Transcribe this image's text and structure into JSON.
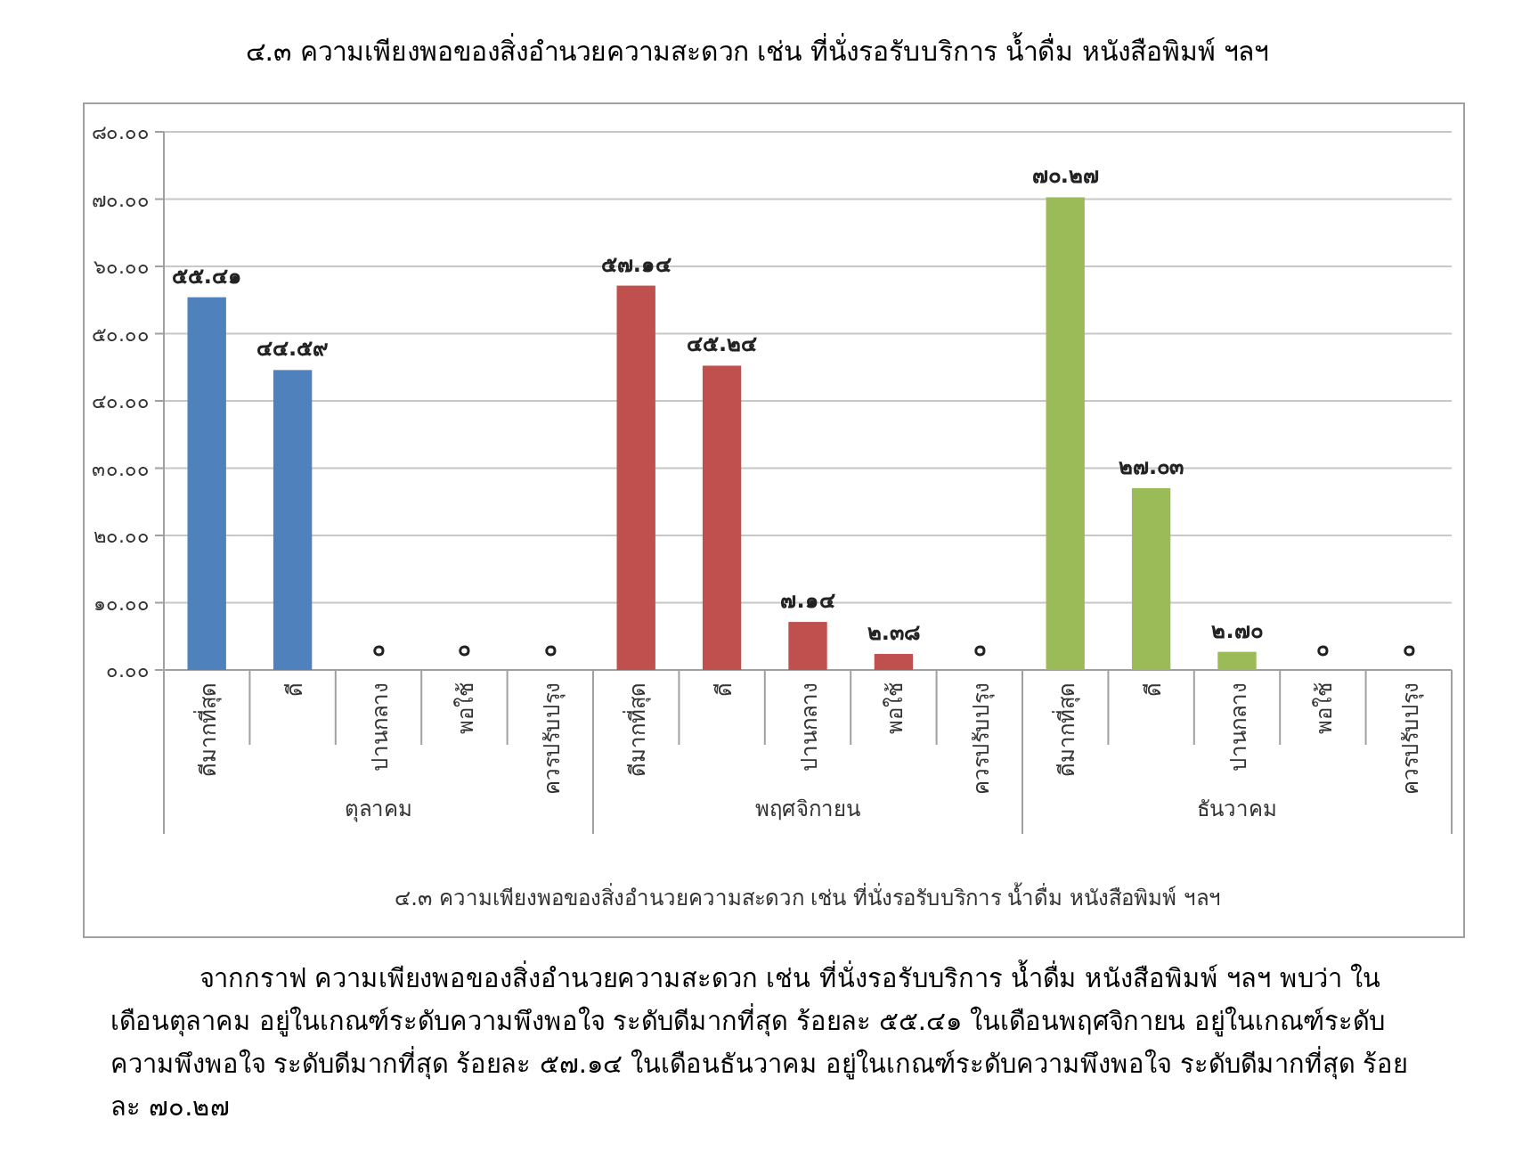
{
  "chart_data": {
    "type": "bar",
    "title": "๔.๓ ความเพียงพอของสิ่งอำนวยความสะดวก เช่น ที่นั่งรอรับบริการ น้ำดื่ม หนังสือพิมพ์ ฯลฯ",
    "xlabel": "๔.๓ ความเพียงพอของสิ่งอำนวยความสะดวก เช่น ที่นั่งรอรับบริการ น้ำดื่ม หนังสือพิมพ์ ฯลฯ",
    "categories": [
      "ดีมากที่สุด",
      "ดี",
      "ปานกลาง",
      "พอใช้",
      "ควรปรับปรุง",
      "ดีมากที่สุด",
      "ดี",
      "ปานกลาง",
      "พอใช้",
      "ควรปรับปรุง",
      "ดีมากที่สุด",
      "ดี",
      "ปานกลาง",
      "พอใช้",
      "ควรปรับปรุง"
    ],
    "series": [
      {
        "color": "#4f81bd",
        "values": [
          55.41,
          44.59,
          0,
          0,
          0,
          null,
          null,
          null,
          null,
          null,
          null,
          null,
          null,
          null,
          null
        ],
        "value_labels": [
          "๕๕.๔๑",
          "๔๔.๕๙",
          "๐",
          "๐",
          "๐",
          null,
          null,
          null,
          null,
          null,
          null,
          null,
          null,
          null,
          null
        ]
      },
      {
        "color": "#c0504d",
        "values": [
          null,
          null,
          null,
          null,
          null,
          57.14,
          45.24,
          7.14,
          2.38,
          0,
          null,
          null,
          null,
          null,
          null
        ],
        "value_labels": [
          null,
          null,
          null,
          null,
          null,
          "๕๗.๑๔",
          "๔๕.๒๔",
          "๗.๑๔",
          "๒.๓๘",
          "๐",
          null,
          null,
          null,
          null,
          null
        ]
      },
      {
        "color": "#9bbb59",
        "values": [
          null,
          null,
          null,
          null,
          null,
          null,
          null,
          null,
          null,
          null,
          70.27,
          27.03,
          2.7,
          0,
          0
        ],
        "value_labels": [
          null,
          null,
          null,
          null,
          null,
          null,
          null,
          null,
          null,
          null,
          "๗๐.๒๗",
          "๒๗.๐๓",
          "๒.๗๐",
          "๐",
          "๐"
        ]
      }
    ],
    "ylim": [
      0,
      80
    ],
    "yticks": [
      {
        "value": 0,
        "label": "๐.๐๐"
      },
      {
        "value": 10,
        "label": "๑๐.๐๐"
      },
      {
        "value": 20,
        "label": "๒๐.๐๐"
      },
      {
        "value": 30,
        "label": "๓๐.๐๐"
      },
      {
        "value": 40,
        "label": "๔๐.๐๐"
      },
      {
        "value": 50,
        "label": "๕๐.๐๐"
      },
      {
        "value": 60,
        "label": "๖๐.๐๐"
      },
      {
        "value": 70,
        "label": "๗๐.๐๐"
      },
      {
        "value": 80,
        "label": "๘๐.๐๐"
      }
    ],
    "grid": "y",
    "annotations": [
      "ตุลาคม",
      "พฤศจิกายน",
      "ธันวาคม",
      "จากกราฟ ความเพียงพอของสิ่งอำนวยความสะดวก เช่น ที่นั่งรอรับบริการ น้ำดื่ม หนังสือพิมพ์ ฯลฯ พบว่า ในเดือนตุลาคม อยู่ในเกณฑ์ระดับความพึงพอใจ ระดับดีมากที่สุด ร้อยละ ๕๕.๔๑ ในเดือนพฤศจิกายน อยู่ในเกณฑ์ระดับความพึงพอใจ ระดับดีมากที่สุด ร้อยละ ๕๗.๑๔ ในเดือนธันวาคม อยู่ในเกณฑ์ระดับความพึงพอใจ ระดับดีมากที่สุด ร้อยละ ๗๐.๒๗"
    ]
  }
}
